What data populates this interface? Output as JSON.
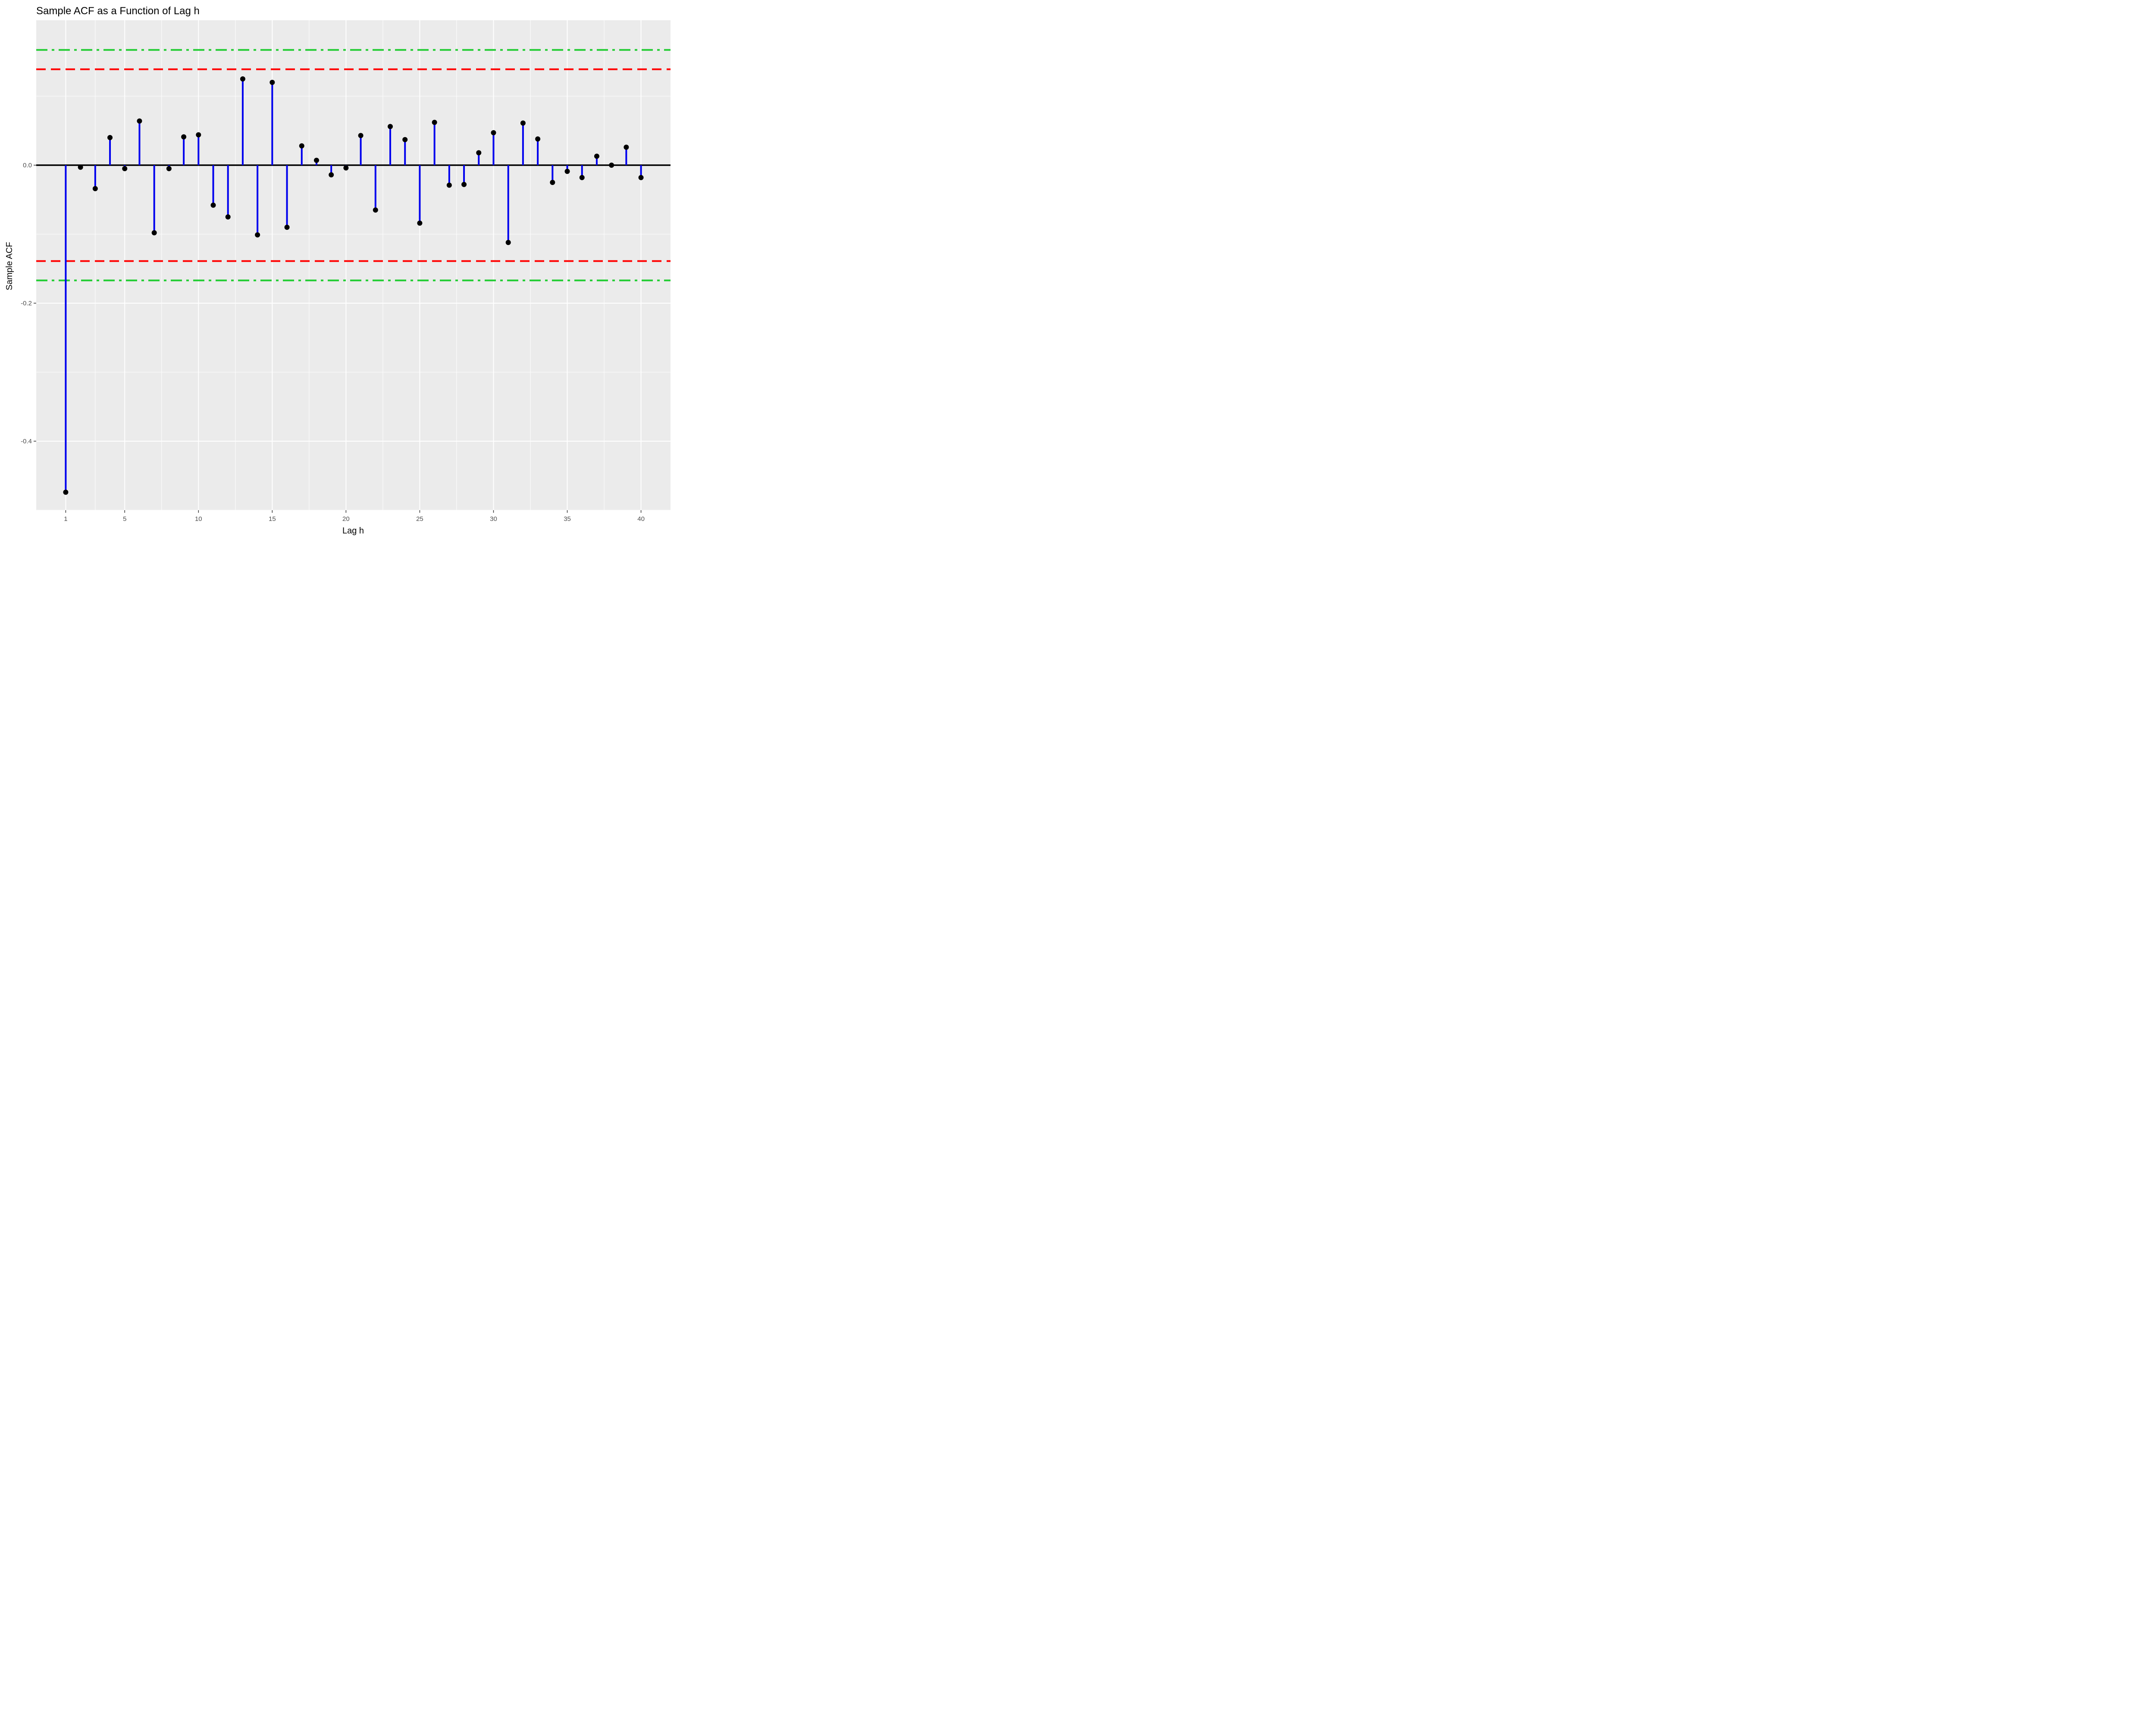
{
  "chart_data": {
    "type": "lollipop",
    "title": "Sample ACF as a Function of Lag h",
    "xlabel": "Lag h",
    "ylabel": "Sample ACF",
    "xlim": [
      -1,
      42
    ],
    "ylim": [
      -0.5,
      0.21
    ],
    "x_ticks": [
      1,
      5,
      10,
      15,
      20,
      25,
      30,
      35,
      40
    ],
    "x_tick_labels": [
      "1",
      "5",
      "10",
      "15",
      "20",
      "25",
      "30",
      "35",
      "40"
    ],
    "y_ticks": [
      -0.4,
      -0.2,
      0.0
    ],
    "y_tick_labels": [
      "-0.4",
      "-0.2",
      "0.0"
    ],
    "grid": true,
    "lags": [
      1,
      2,
      3,
      4,
      5,
      6,
      7,
      8,
      9,
      10,
      11,
      12,
      13,
      14,
      15,
      16,
      17,
      18,
      19,
      20,
      21,
      22,
      23,
      24,
      25,
      26,
      27,
      28,
      29,
      30,
      31,
      32,
      33,
      34,
      35,
      36,
      37,
      38,
      39,
      40
    ],
    "values": [
      -0.474,
      -0.003,
      -0.034,
      0.04,
      -0.005,
      0.064,
      -0.098,
      -0.005,
      0.041,
      0.044,
      -0.058,
      -0.075,
      0.125,
      -0.101,
      0.12,
      -0.09,
      0.028,
      0.007,
      -0.014,
      -0.004,
      0.043,
      -0.065,
      0.056,
      0.037,
      -0.084,
      0.062,
      -0.029,
      -0.028,
      0.018,
      0.047,
      -0.112,
      0.061,
      0.038,
      -0.025,
      -0.009,
      -0.018,
      0.013,
      0.0,
      0.026,
      -0.018
    ],
    "zero_line": 0.0,
    "reference_lines": [
      {
        "value": 0.139,
        "color": "#FF0000",
        "style": "dashed"
      },
      {
        "value": -0.139,
        "color": "#FF0000",
        "style": "dashed"
      },
      {
        "value": 0.167,
        "color": "#22CC33",
        "style": "dashdot"
      },
      {
        "value": -0.167,
        "color": "#22CC33",
        "style": "dashdot"
      }
    ],
    "colors": {
      "stem": "#0000EE",
      "point": "#000000",
      "panel_background": "#EBEBEB",
      "grid": "#FFFFFF",
      "zero_line": "#000000"
    }
  }
}
